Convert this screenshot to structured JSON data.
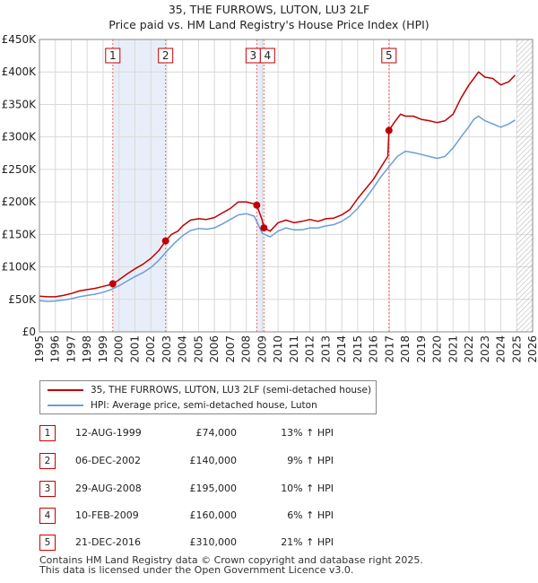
{
  "title_line1": "35, THE FURROWS, LUTON, LU3 2LF",
  "title_line2": "Price paid vs. HM Land Registry's House Price Index (HPI)",
  "legend": {
    "property_label": "35, THE FURROWS, LUTON, LU3 2LF (semi-detached house)",
    "hpi_label": "HPI: Average price, semi-detached house, Luton"
  },
  "colors": {
    "property": "#c00000",
    "hpi": "#6a9fd4",
    "shade": "#e8eef9",
    "grid": "#d9d9d9",
    "marker_line": "#ee6666",
    "future_hatch": "#999999"
  },
  "sales": [
    {
      "num": "1",
      "date": "12-AUG-1999",
      "price": "£74,000",
      "hpi": "13% ↑ HPI"
    },
    {
      "num": "2",
      "date": "06-DEC-2002",
      "price": "£140,000",
      "hpi": "9% ↑ HPI"
    },
    {
      "num": "3",
      "date": "29-AUG-2008",
      "price": "£195,000",
      "hpi": "10% ↑ HPI"
    },
    {
      "num": "4",
      "date": "10-FEB-2009",
      "price": "£160,000",
      "hpi": "6% ↑ HPI"
    },
    {
      "num": "5",
      "date": "21-DEC-2016",
      "price": "£310,000",
      "hpi": "21% ↑ HPI"
    }
  ],
  "footer": "Contains HM Land Registry data © Crown copyright and database right 2025.\nThis data is licensed under the Open Government Licence v3.0.",
  "chart_data": {
    "type": "line",
    "title": "35, THE FURROWS, LUTON, LU3 2LF — Price paid vs. HM Land Registry's House Price Index (HPI)",
    "xlabel": "",
    "ylabel": "",
    "xlim": [
      1995,
      2026
    ],
    "ylim": [
      0,
      450000
    ],
    "x_ticks": [
      1995,
      1996,
      1997,
      1998,
      1999,
      2000,
      2001,
      2002,
      2003,
      2004,
      2005,
      2006,
      2007,
      2008,
      2009,
      2010,
      2011,
      2012,
      2013,
      2014,
      2015,
      2016,
      2017,
      2018,
      2019,
      2020,
      2021,
      2022,
      2023,
      2024,
      2025,
      2026
    ],
    "y_ticks": [
      0,
      50000,
      100000,
      150000,
      200000,
      250000,
      300000,
      350000,
      400000,
      450000
    ],
    "y_tick_labels": [
      "£0",
      "£50K",
      "£100K",
      "£150K",
      "£200K",
      "£250K",
      "£300K",
      "£350K",
      "£400K",
      "£450K"
    ],
    "grid": true,
    "shaded_periods": [
      [
        1999.61,
        2002.93
      ],
      [
        2008.66,
        2009.11
      ]
    ],
    "future_from": 2025.0,
    "sale_markers": [
      {
        "label": "1",
        "x": 1999.61,
        "y": 74000
      },
      {
        "label": "2",
        "x": 2002.93,
        "y": 140000
      },
      {
        "label": "3",
        "x": 2008.66,
        "y": 195000
      },
      {
        "label": "4",
        "x": 2009.11,
        "y": 160000
      },
      {
        "label": "5",
        "x": 2016.97,
        "y": 310000
      }
    ],
    "series": [
      {
        "name": "35, THE FURROWS, LUTON, LU3 2LF (semi-detached house)",
        "x": [
          1995.0,
          1995.5,
          1996.0,
          1996.5,
          1997.0,
          1997.5,
          1998.0,
          1998.5,
          1999.0,
          1999.5,
          1999.61,
          2000.0,
          2000.5,
          2001.0,
          2001.5,
          2002.0,
          2002.5,
          2002.93,
          2003.3,
          2003.7,
          2004.0,
          2004.5,
          2005.0,
          2005.5,
          2006.0,
          2006.5,
          2007.0,
          2007.5,
          2008.0,
          2008.5,
          2008.66,
          2009.0,
          2009.11,
          2009.5,
          2010.0,
          2010.5,
          2011.0,
          2011.5,
          2012.0,
          2012.5,
          2013.0,
          2013.5,
          2014.0,
          2014.5,
          2015.0,
          2015.5,
          2016.0,
          2016.5,
          2016.9,
          2016.97,
          2017.3,
          2017.7,
          2018.0,
          2018.5,
          2019.0,
          2019.5,
          2020.0,
          2020.5,
          2021.0,
          2021.5,
          2022.0,
          2022.3,
          2022.6,
          2023.0,
          2023.5,
          2024.0,
          2024.5,
          2024.9
        ],
        "values": [
          55000,
          54000,
          54000,
          56000,
          59000,
          63000,
          65000,
          67000,
          70000,
          73000,
          74000,
          80000,
          89000,
          97000,
          104000,
          113000,
          125000,
          140000,
          150000,
          155000,
          163000,
          172000,
          174000,
          173000,
          176000,
          183000,
          190000,
          200000,
          200000,
          197000,
          195000,
          172000,
          160000,
          155000,
          168000,
          172000,
          168000,
          170000,
          173000,
          170000,
          174000,
          175000,
          180000,
          188000,
          205000,
          220000,
          235000,
          255000,
          270000,
          310000,
          322000,
          335000,
          332000,
          332000,
          327000,
          325000,
          322000,
          325000,
          335000,
          360000,
          380000,
          390000,
          400000,
          392000,
          390000,
          380000,
          385000,
          395000
        ]
      },
      {
        "name": "HPI: Average price, semi-detached house, Luton",
        "x": [
          1995.0,
          1995.5,
          1996.0,
          1996.5,
          1997.0,
          1997.5,
          1998.0,
          1998.5,
          1999.0,
          1999.5,
          2000.0,
          2000.5,
          2001.0,
          2001.5,
          2002.0,
          2002.5,
          2003.0,
          2003.5,
          2004.0,
          2004.5,
          2005.0,
          2005.5,
          2006.0,
          2006.5,
          2007.0,
          2007.5,
          2008.0,
          2008.5,
          2009.0,
          2009.5,
          2010.0,
          2010.5,
          2011.0,
          2011.5,
          2012.0,
          2012.5,
          2013.0,
          2013.5,
          2014.0,
          2014.5,
          2015.0,
          2015.5,
          2016.0,
          2016.5,
          2017.0,
          2017.5,
          2018.0,
          2018.5,
          2019.0,
          2019.5,
          2020.0,
          2020.5,
          2021.0,
          2021.5,
          2022.0,
          2022.3,
          2022.6,
          2023.0,
          2023.5,
          2024.0,
          2024.5,
          2024.9
        ],
        "values": [
          48000,
          47000,
          47500,
          49000,
          51000,
          54000,
          56000,
          58000,
          61000,
          65000,
          71000,
          78000,
          85000,
          91000,
          99000,
          110000,
          124000,
          137000,
          148000,
          156000,
          159000,
          158000,
          160000,
          166000,
          173000,
          180000,
          182000,
          178000,
          152000,
          146000,
          155000,
          160000,
          157000,
          157000,
          160000,
          160000,
          163000,
          165000,
          170000,
          178000,
          190000,
          205000,
          222000,
          240000,
          255000,
          270000,
          278000,
          276000,
          273000,
          270000,
          267000,
          270000,
          283000,
          300000,
          316000,
          327000,
          332000,
          325000,
          320000,
          315000,
          320000,
          326000
        ]
      }
    ]
  }
}
